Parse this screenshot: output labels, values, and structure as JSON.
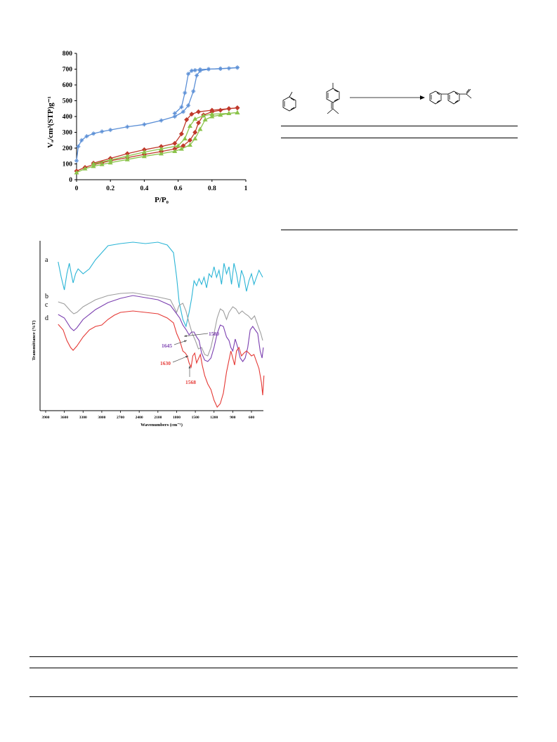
{
  "chart_data": [
    {
      "type": "line",
      "title": "",
      "xlabel": "P/P₀",
      "ylabel": "Vₐ/cm³(STP)g⁻¹",
      "xlim": [
        0,
        1
      ],
      "ylim": [
        0,
        800
      ],
      "x_ticks": [
        "0",
        "0.2",
        "0.4",
        "0.6",
        "0.8",
        "1"
      ],
      "y_ticks": [
        "0",
        "100",
        "200",
        "300",
        "400",
        "500",
        "600",
        "700",
        "800"
      ],
      "grid": false,
      "legend": "none",
      "series": [
        {
          "color": "#5b8fd6",
          "marker": "star",
          "adsorption": [
            [
              0.0,
              120
            ],
            [
              0.01,
              210
            ],
            [
              0.03,
              250
            ],
            [
              0.06,
              275
            ],
            [
              0.1,
              292
            ],
            [
              0.15,
              305
            ],
            [
              0.2,
              315
            ],
            [
              0.3,
              335
            ],
            [
              0.4,
              350
            ],
            [
              0.5,
              375
            ],
            [
              0.58,
              400
            ],
            [
              0.63,
              430
            ],
            [
              0.66,
              470
            ],
            [
              0.69,
              560
            ],
            [
              0.71,
              660
            ],
            [
              0.73,
              690
            ],
            [
              0.78,
              700
            ],
            [
              0.85,
              703
            ],
            [
              0.9,
              705
            ],
            [
              0.95,
              710
            ]
          ],
          "desorption": [
            [
              0.95,
              710
            ],
            [
              0.85,
              703
            ],
            [
              0.78,
              700
            ],
            [
              0.73,
              698
            ],
            [
              0.7,
              693
            ],
            [
              0.68,
              690
            ],
            [
              0.66,
              670
            ],
            [
              0.64,
              550
            ],
            [
              0.62,
              460
            ],
            [
              0.58,
              420
            ]
          ]
        },
        {
          "color": "#c0392b",
          "marker": "diamond",
          "adsorption": [
            [
              0.0,
              55
            ],
            [
              0.05,
              78
            ],
            [
              0.1,
              95
            ],
            [
              0.15,
              108
            ],
            [
              0.2,
              120
            ],
            [
              0.3,
              140
            ],
            [
              0.4,
              160
            ],
            [
              0.5,
              178
            ],
            [
              0.58,
              195
            ],
            [
              0.63,
              215
            ],
            [
              0.67,
              250
            ],
            [
              0.7,
              300
            ],
            [
              0.72,
              360
            ],
            [
              0.75,
              410
            ],
            [
              0.8,
              430
            ],
            [
              0.85,
              440
            ],
            [
              0.9,
              450
            ],
            [
              0.95,
              455
            ]
          ],
          "desorption": [
            [
              0.95,
              455
            ],
            [
              0.9,
              450
            ],
            [
              0.8,
              440
            ],
            [
              0.72,
              430
            ],
            [
              0.68,
              415
            ],
            [
              0.65,
              380
            ],
            [
              0.62,
              290
            ],
            [
              0.58,
              230
            ],
            [
              0.5,
              210
            ],
            [
              0.4,
              190
            ],
            [
              0.3,
              165
            ],
            [
              0.2,
              135
            ],
            [
              0.1,
              105
            ]
          ]
        },
        {
          "color": "#8bc34a",
          "marker": "triangle",
          "adsorption": [
            [
              0.0,
              45
            ],
            [
              0.05,
              70
            ],
            [
              0.1,
              85
            ],
            [
              0.15,
              97
            ],
            [
              0.2,
              108
            ],
            [
              0.3,
              128
            ],
            [
              0.4,
              148
            ],
            [
              0.5,
              165
            ],
            [
              0.58,
              180
            ],
            [
              0.62,
              195
            ],
            [
              0.67,
              220
            ],
            [
              0.7,
              260
            ],
            [
              0.73,
              320
            ],
            [
              0.76,
              380
            ],
            [
              0.8,
              400
            ],
            [
              0.85,
              410
            ],
            [
              0.9,
              420
            ],
            [
              0.95,
              425
            ]
          ],
          "desorption": [
            [
              0.95,
              425
            ],
            [
              0.9,
              420
            ],
            [
              0.8,
              415
            ],
            [
              0.75,
              405
            ],
            [
              0.7,
              385
            ],
            [
              0.67,
              340
            ],
            [
              0.64,
              260
            ],
            [
              0.6,
              215
            ],
            [
              0.5,
              195
            ],
            [
              0.4,
              175
            ],
            [
              0.3,
              150
            ],
            [
              0.2,
              125
            ],
            [
              0.1,
              100
            ]
          ]
        }
      ]
    },
    {
      "type": "line",
      "title": "",
      "xlabel": "Wavenumbers (cm⁻¹)",
      "ylabel": "Transmittance (%T)",
      "xlim": [
        3900,
        400
      ],
      "x_ticks": [
        "3900",
        "3600",
        "3300",
        "3000",
        "2700",
        "2400",
        "2100",
        "1800",
        "1500",
        "1200",
        "900",
        "600"
      ],
      "grid": false,
      "legend": "left",
      "series": [
        {
          "name": "a",
          "color": "#2bb5d6"
        },
        {
          "name": "b",
          "color": "#9e9e9e"
        },
        {
          "name": "c",
          "color": "#7b3fb0"
        },
        {
          "name": "d",
          "color": "#e53935"
        }
      ],
      "annotations": [
        {
          "text": "1580",
          "color": "#7b3fb0"
        },
        {
          "text": "1645",
          "color": "#7b3fb0"
        },
        {
          "text": "1630",
          "color": "#e53935"
        },
        {
          "text": "1568",
          "color": "#e53935"
        }
      ]
    }
  ]
}
